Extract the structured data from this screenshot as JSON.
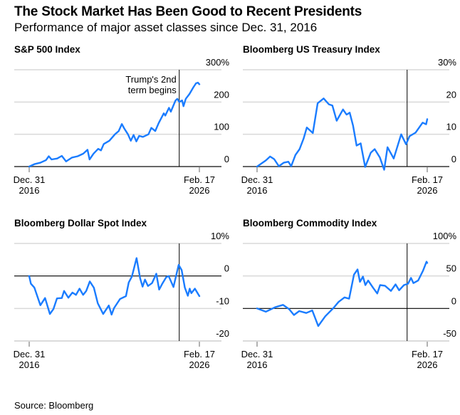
{
  "title": "The Stock Market Has Been Good to Recent Presidents",
  "subtitle": "Performance of major asset classes since Dec. 31, 2016",
  "source": "Source: Bloomberg",
  "colors": {
    "line": "#1a7cff",
    "grid": "#d9d9d9",
    "axis": "#000000",
    "marker": "#000000"
  },
  "chart_data": [
    {
      "type": "line",
      "title": "S&P 500 Index",
      "unit": "%",
      "ylim": [
        0,
        300
      ],
      "yticks": [
        "300%",
        "200",
        "100",
        "0"
      ],
      "ytick_values": [
        300,
        200,
        100,
        0
      ],
      "xlim": [
        2017.0,
        2026.13
      ],
      "xticks": [
        {
          "t": 2017.0,
          "line1": "Dec. 31",
          "line2": "2016"
        },
        {
          "t": 2026.13,
          "line1": "Feb. 17",
          "line2": "2026"
        }
      ],
      "marker": {
        "t": 2025.05,
        "label1": "Trump's 2nd",
        "label2": "term begins"
      },
      "grid": true,
      "x": [
        2017.0,
        2017.3,
        2017.6,
        2017.9,
        2018.05,
        2018.2,
        2018.5,
        2018.75,
        2018.98,
        2019.3,
        2019.6,
        2019.9,
        2020.13,
        2020.24,
        2020.45,
        2020.7,
        2020.85,
        2021.0,
        2021.3,
        2021.6,
        2021.8,
        2021.97,
        2022.1,
        2022.3,
        2022.45,
        2022.6,
        2022.75,
        2022.9,
        2023.1,
        2023.4,
        2023.55,
        2023.76,
        2023.95,
        2024.22,
        2024.3,
        2024.5,
        2024.6,
        2024.85,
        2024.95,
        2025.05,
        2025.2,
        2025.28,
        2025.4,
        2025.6,
        2025.8,
        2025.95,
        2026.05,
        2026.13
      ],
      "y": [
        0,
        8,
        12,
        20,
        32,
        22,
        25,
        33,
        16,
        28,
        32,
        40,
        52,
        22,
        40,
        55,
        50,
        70,
        80,
        100,
        110,
        132,
        118,
        100,
        80,
        98,
        78,
        95,
        92,
        100,
        120,
        110,
        135,
        165,
        158,
        182,
        170,
        205,
        210,
        200,
        205,
        187,
        210,
        225,
        245,
        258,
        260,
        255
      ]
    },
    {
      "type": "line",
      "title": "Bloomberg US Treasury Index",
      "unit": "%",
      "ylim": [
        0,
        30
      ],
      "yticks": [
        "30%",
        "20",
        "10",
        "0"
      ],
      "ytick_values": [
        30,
        20,
        10,
        0
      ],
      "xlim": [
        2017.0,
        2026.13
      ],
      "xticks": [
        {
          "t": 2017.0,
          "line1": "Dec. 31",
          "line2": "2016"
        },
        {
          "t": 2026.13,
          "line1": "Feb. 17",
          "line2": "2026"
        }
      ],
      "marker": {
        "t": 2025.05
      },
      "grid": true,
      "x": [
        2017.0,
        2017.47,
        2017.7,
        2017.92,
        2018.17,
        2018.43,
        2018.68,
        2018.83,
        2019.06,
        2019.28,
        2019.5,
        2019.67,
        2019.99,
        2020.25,
        2020.57,
        2020.85,
        2021.04,
        2021.27,
        2021.61,
        2021.8,
        2021.97,
        2022.15,
        2022.34,
        2022.56,
        2022.8,
        2022.95,
        2023.1,
        2023.31,
        2023.59,
        2023.82,
        2024.0,
        2024.33,
        2024.73,
        2024.99,
        2025.18,
        2025.5,
        2025.88,
        2026.07,
        2026.13
      ],
      "y": [
        0,
        1.9,
        3.1,
        2.3,
        0.1,
        1.2,
        1.5,
        0.1,
        3.6,
        5.4,
        8.7,
        12.1,
        10.4,
        19.6,
        21.1,
        19.3,
        18.9,
        14.2,
        17.7,
        16.1,
        16.7,
        12.7,
        6.5,
        7.2,
        -0.1,
        2.1,
        4.3,
        5.4,
        2.8,
        -1.0,
        6.0,
        2.5,
        10.0,
        6.9,
        9.4,
        10.5,
        13.6,
        13.1,
        14.7
      ]
    },
    {
      "type": "line",
      "title": "Bloomberg Dollar Spot Index",
      "unit": "%",
      "ylim": [
        -20,
        10
      ],
      "yticks": [
        "10%",
        "0",
        "-10",
        "-20"
      ],
      "ytick_values": [
        10,
        0,
        -10,
        -20
      ],
      "xlim": [
        2017.0,
        2026.13
      ],
      "xticks": [
        {
          "t": 2017.0,
          "line1": "Dec. 31",
          "line2": "2016"
        },
        {
          "t": 2026.13,
          "line1": "Feb. 17",
          "line2": "2026"
        }
      ],
      "marker": {
        "t": 2025.05
      },
      "grid": true,
      "x": [
        2017.0,
        2017.09,
        2017.28,
        2017.6,
        2017.85,
        2018.11,
        2018.3,
        2018.49,
        2018.75,
        2018.87,
        2019.1,
        2019.32,
        2019.51,
        2019.7,
        2019.89,
        2020.06,
        2020.25,
        2020.47,
        2020.68,
        2020.97,
        2021.27,
        2021.42,
        2021.55,
        2021.87,
        2022.19,
        2022.34,
        2022.51,
        2022.76,
        2022.95,
        2023.08,
        2023.21,
        2023.37,
        2023.59,
        2023.82,
        2023.97,
        2024.16,
        2024.35,
        2024.48,
        2024.74,
        2025.02,
        2025.18,
        2025.35,
        2025.51,
        2025.61,
        2025.7,
        2025.89,
        2026.13
      ],
      "y": [
        0,
        -2.4,
        -3.6,
        -9.0,
        -6.8,
        -11.7,
        -10.2,
        -6.9,
        -6.8,
        -4.6,
        -6.7,
        -5.1,
        -5.8,
        -3.9,
        -5.8,
        -4.6,
        -1.7,
        -3.6,
        -8.4,
        -11.7,
        -9.1,
        -11.9,
        -9.9,
        -7.1,
        -6.2,
        -2.0,
        -0.2,
        5.5,
        -0.7,
        -3.3,
        -1.1,
        -3.1,
        -2.2,
        0.7,
        -4.2,
        -2.2,
        -0.4,
        0,
        -3.4,
        3.4,
        1.8,
        -3.6,
        -6.1,
        -3.9,
        -5.3,
        -3.9,
        -6.2
      ]
    },
    {
      "type": "line",
      "title": "Bloomberg Commodity Index",
      "unit": "%",
      "ylim": [
        -50,
        100
      ],
      "yticks": [
        "100%",
        "50",
        "0",
        "-50"
      ],
      "ytick_values": [
        100,
        50,
        0,
        -50
      ],
      "xlim": [
        2017.0,
        2026.13
      ],
      "xticks": [
        {
          "t": 2017.0,
          "line1": "Dec. 31",
          "line2": "2016"
        },
        {
          "t": 2026.13,
          "line1": "Feb. 17",
          "line2": "2026"
        }
      ],
      "marker": {
        "t": 2025.05
      },
      "grid": true,
      "x": [
        2017.0,
        2017.47,
        2017.98,
        2018.39,
        2018.72,
        2018.98,
        2019.26,
        2019.64,
        2019.96,
        2020.28,
        2020.66,
        2021.11,
        2021.37,
        2021.69,
        2021.94,
        2022.2,
        2022.39,
        2022.52,
        2022.68,
        2022.81,
        2022.96,
        2023.22,
        2023.45,
        2023.6,
        2023.86,
        2024.18,
        2024.43,
        2024.62,
        2024.88,
        2025.1,
        2025.26,
        2025.39,
        2025.64,
        2025.9,
        2026.09,
        2026.13
      ],
      "y": [
        0,
        -5,
        2,
        5.5,
        -1,
        -10,
        -4,
        -7,
        -3,
        -27,
        -12,
        1,
        10,
        17,
        15,
        52,
        60,
        41,
        49,
        36,
        43,
        32,
        23,
        36,
        35,
        27,
        37,
        28,
        36,
        38,
        47,
        39,
        43,
        58,
        72,
        70
      ]
    }
  ]
}
